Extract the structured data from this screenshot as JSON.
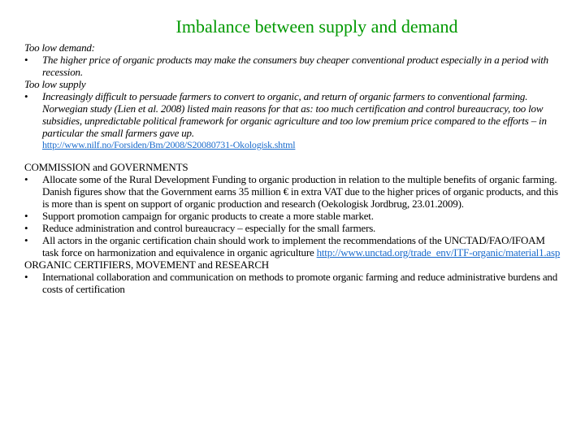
{
  "title": "Imbalance between supply and demand",
  "s1": {
    "heading": "Too low demand:",
    "bullet1": "The higher price of organic products may make the consumers buy cheaper conventional product especially in a period with recession."
  },
  "s2": {
    "heading": "Too low supply",
    "bullet1": "Increasingly difficult to persuade farmers to convert to organic, and return of organic farmers to conventional farming. Norwegian study (Lien et al. 2008) listed main reasons for that as:  too much certification and control bureaucracy, too low subsidies, unpredictable political framework for organic agriculture and too low premium price compared to the efforts – in particular the small farmers gave up.",
    "link": "http://www.nilf.no/Forsiden/Bm/2008/S20080731-Okologisk.shtml"
  },
  "s3": {
    "heading": "COMMISSION and GOVERNMENTS",
    "b1": "Allocate some of the Rural Development Funding to organic production in relation to the multiple benefits of organic farming. Danish figures show that the Government earns  35 million € in extra VAT due to the higher prices of organic products, and this is more than is spent on support of organic production and research (Oekologisk Jordbrug, 23.01.2009).",
    "b2": "Support promotion campaign for organic products to create a more stable market.",
    "b3": "Reduce administration and control bureaucracy – especially for the small farmers.",
    "b4a": "All actors in the organic certification chain should work to implement the recommendations of the UNCTAD/FAO/IFOAM task force on harmonization and equivalence in organic agriculture ",
    "b4link": "http://www.unctad.org/trade_env/ITF-organic/material1.asp"
  },
  "s4": {
    "heading": "ORGANIC CERTIFIERS, MOVEMENT and RESEARCH",
    "b1": "International collaboration and communication on methods to promote organic farming and reduce administrative burdens and costs of certification"
  }
}
